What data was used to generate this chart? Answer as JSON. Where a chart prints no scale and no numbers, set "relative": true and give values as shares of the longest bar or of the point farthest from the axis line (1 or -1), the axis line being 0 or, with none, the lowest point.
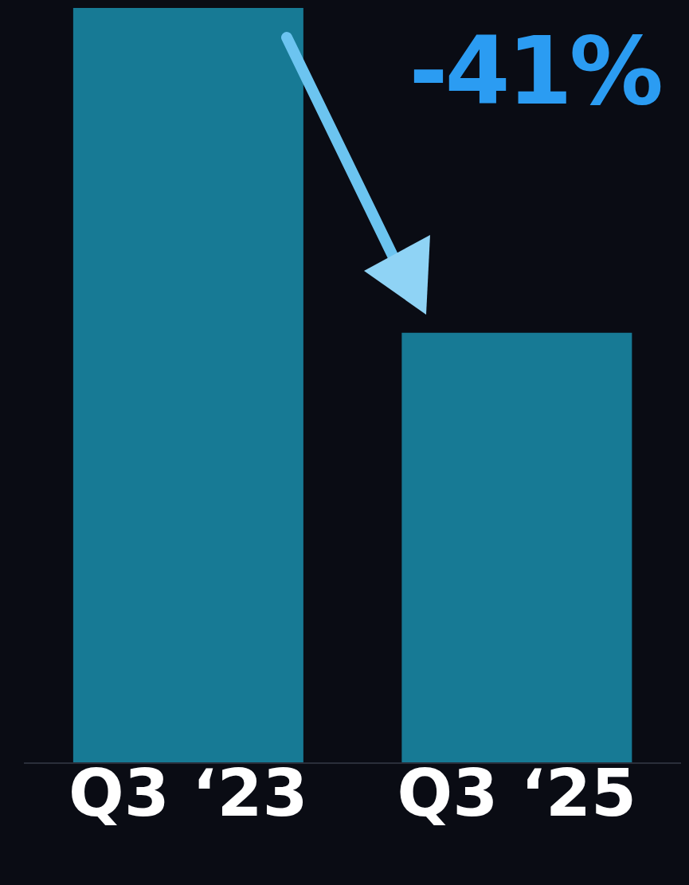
{
  "chart_data": {
    "type": "bar",
    "relative": true,
    "categories": [
      "Q3 ‘23",
      "Q3 ‘25"
    ],
    "values": [
      1,
      0.57
    ],
    "color": "#177a95",
    "annotations": [
      "-41%"
    ],
    "grid": false,
    "legend": false
  }
}
